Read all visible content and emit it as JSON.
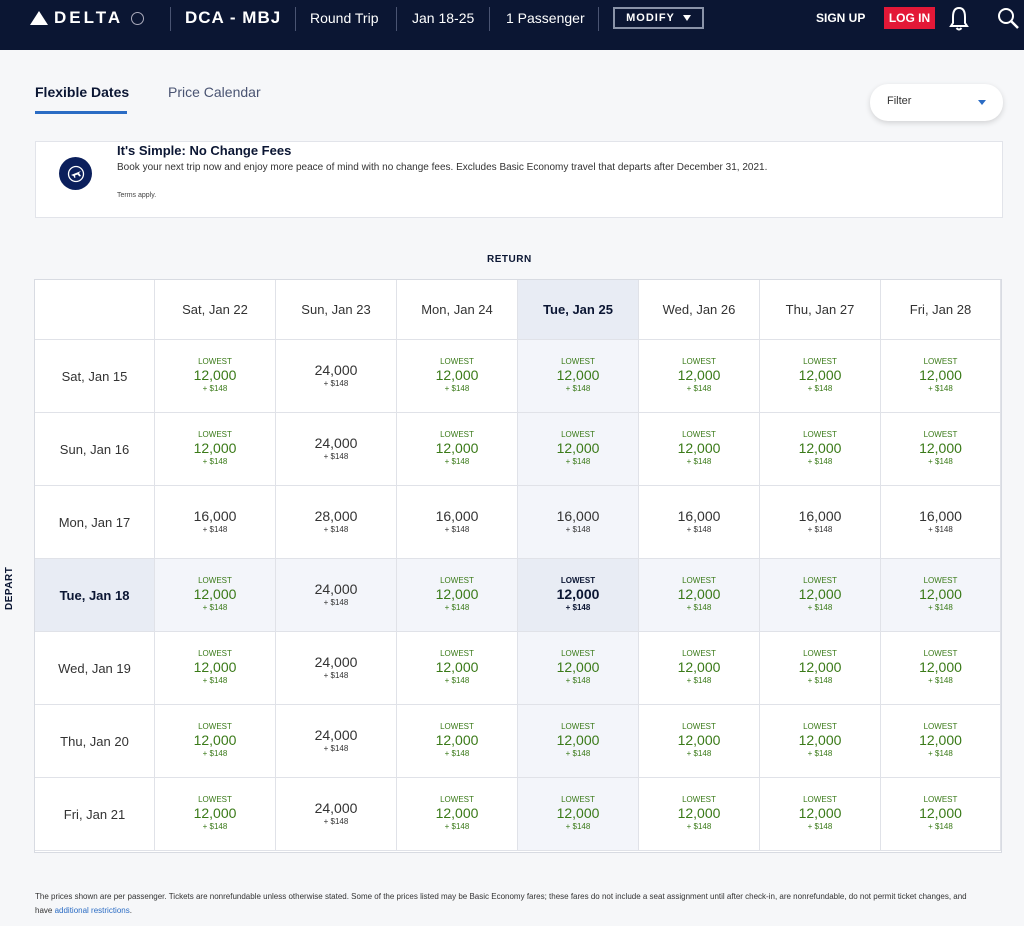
{
  "header": {
    "brand": "DELTA",
    "route": "DCA - MBJ",
    "trip_type": "Round Trip",
    "dates": "Jan 18-25",
    "passengers": "1 Passenger",
    "modify_label": "MODIFY",
    "signup_label": "SIGN UP",
    "login_label": "LOG IN"
  },
  "tabs": [
    {
      "label": "Flexible Dates",
      "active": true
    },
    {
      "label": "Price Calendar",
      "active": false
    }
  ],
  "filter": {
    "label": "Filter"
  },
  "notice": {
    "title": "It's Simple: No Change Fees",
    "body": "Book your next trip now and enjoy more peace of mind with no change fees. Excludes Basic Economy travel that departs after December 31, 2021.",
    "terms": "Terms apply."
  },
  "grid": {
    "return_label": "RETURN",
    "depart_label": "DEPART",
    "lowest_label": "LOWEST",
    "return_dates": [
      "Sat, Jan 22",
      "Sun, Jan 23",
      "Mon, Jan 24",
      "Tue, Jan 25",
      "Wed, Jan 26",
      "Thu, Jan 27",
      "Fri, Jan 28"
    ],
    "depart_dates": [
      "Sat, Jan 15",
      "Sun, Jan 16",
      "Mon, Jan 17",
      "Tue, Jan 18",
      "Wed, Jan 19",
      "Thu, Jan 20",
      "Fri, Jan 21"
    ],
    "selected_return": 3,
    "selected_depart": 3,
    "rows": [
      [
        {
          "miles": "12,000",
          "fee": "+ $148",
          "lowest": true
        },
        {
          "miles": "24,000",
          "fee": "+ $148",
          "lowest": false
        },
        {
          "miles": "12,000",
          "fee": "+ $148",
          "lowest": true
        },
        {
          "miles": "12,000",
          "fee": "+ $148",
          "lowest": true
        },
        {
          "miles": "12,000",
          "fee": "+ $148",
          "lowest": true
        },
        {
          "miles": "12,000",
          "fee": "+ $148",
          "lowest": true
        },
        {
          "miles": "12,000",
          "fee": "+ $148",
          "lowest": true
        }
      ],
      [
        {
          "miles": "12,000",
          "fee": "+ $148",
          "lowest": true
        },
        {
          "miles": "24,000",
          "fee": "+ $148",
          "lowest": false
        },
        {
          "miles": "12,000",
          "fee": "+ $148",
          "lowest": true
        },
        {
          "miles": "12,000",
          "fee": "+ $148",
          "lowest": true
        },
        {
          "miles": "12,000",
          "fee": "+ $148",
          "lowest": true
        },
        {
          "miles": "12,000",
          "fee": "+ $148",
          "lowest": true
        },
        {
          "miles": "12,000",
          "fee": "+ $148",
          "lowest": true
        }
      ],
      [
        {
          "miles": "16,000",
          "fee": "+ $148",
          "lowest": false
        },
        {
          "miles": "28,000",
          "fee": "+ $148",
          "lowest": false
        },
        {
          "miles": "16,000",
          "fee": "+ $148",
          "lowest": false
        },
        {
          "miles": "16,000",
          "fee": "+ $148",
          "lowest": false
        },
        {
          "miles": "16,000",
          "fee": "+ $148",
          "lowest": false
        },
        {
          "miles": "16,000",
          "fee": "+ $148",
          "lowest": false
        },
        {
          "miles": "16,000",
          "fee": "+ $148",
          "lowest": false
        }
      ],
      [
        {
          "miles": "12,000",
          "fee": "+ $148",
          "lowest": true
        },
        {
          "miles": "24,000",
          "fee": "+ $148",
          "lowest": false
        },
        {
          "miles": "12,000",
          "fee": "+ $148",
          "lowest": true
        },
        {
          "miles": "12,000",
          "fee": "+ $148",
          "lowest": true
        },
        {
          "miles": "12,000",
          "fee": "+ $148",
          "lowest": true
        },
        {
          "miles": "12,000",
          "fee": "+ $148",
          "lowest": true
        },
        {
          "miles": "12,000",
          "fee": "+ $148",
          "lowest": true
        }
      ],
      [
        {
          "miles": "12,000",
          "fee": "+ $148",
          "lowest": true
        },
        {
          "miles": "24,000",
          "fee": "+ $148",
          "lowest": false
        },
        {
          "miles": "12,000",
          "fee": "+ $148",
          "lowest": true
        },
        {
          "miles": "12,000",
          "fee": "+ $148",
          "lowest": true
        },
        {
          "miles": "12,000",
          "fee": "+ $148",
          "lowest": true
        },
        {
          "miles": "12,000",
          "fee": "+ $148",
          "lowest": true
        },
        {
          "miles": "12,000",
          "fee": "+ $148",
          "lowest": true
        }
      ],
      [
        {
          "miles": "12,000",
          "fee": "+ $148",
          "lowest": true
        },
        {
          "miles": "24,000",
          "fee": "+ $148",
          "lowest": false
        },
        {
          "miles": "12,000",
          "fee": "+ $148",
          "lowest": true
        },
        {
          "miles": "12,000",
          "fee": "+ $148",
          "lowest": true
        },
        {
          "miles": "12,000",
          "fee": "+ $148",
          "lowest": true
        },
        {
          "miles": "12,000",
          "fee": "+ $148",
          "lowest": true
        },
        {
          "miles": "12,000",
          "fee": "+ $148",
          "lowest": true
        }
      ],
      [
        {
          "miles": "12,000",
          "fee": "+ $148",
          "lowest": true
        },
        {
          "miles": "24,000",
          "fee": "+ $148",
          "lowest": false
        },
        {
          "miles": "12,000",
          "fee": "+ $148",
          "lowest": true
        },
        {
          "miles": "12,000",
          "fee": "+ $148",
          "lowest": true
        },
        {
          "miles": "12,000",
          "fee": "+ $148",
          "lowest": true
        },
        {
          "miles": "12,000",
          "fee": "+ $148",
          "lowest": true
        },
        {
          "miles": "12,000",
          "fee": "+ $148",
          "lowest": true
        }
      ]
    ]
  },
  "footer": {
    "text": "The prices shown are per passenger. Tickets are nonrefundable unless otherwise stated. Some of the prices listed may be Basic Economy fares; these fares do not include a seat assignment until after check-in, are nonrefundable, do not permit ticket changes, and have ",
    "link": "additional restrictions",
    "end": "."
  },
  "colors": {
    "navy": "#0b1633",
    "accent_blue": "#2b6cc4",
    "login_red": "#e31837",
    "lowest_green": "#3a7a18",
    "selected_bg": "#e8ecf4"
  },
  "icons": [
    "delta-logo-icon",
    "globe-icon",
    "chevron-down-icon",
    "bell-icon",
    "search-icon",
    "plane-icon"
  ]
}
